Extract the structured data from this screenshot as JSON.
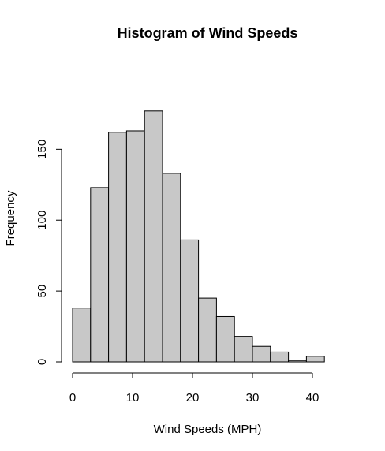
{
  "chart_data": {
    "type": "bar",
    "title": "Histogram of Wind Speeds",
    "xlabel": "Wind Speeds (MPH)",
    "ylabel": "Frequency",
    "bin_edges": [
      0,
      3,
      6,
      9,
      12,
      15,
      18,
      21,
      24,
      27,
      30,
      33,
      36,
      39,
      42
    ],
    "values": [
      38,
      123,
      162,
      163,
      177,
      133,
      86,
      45,
      32,
      18,
      11,
      7,
      1,
      4
    ],
    "x_ticks": [
      0,
      10,
      20,
      30,
      40
    ],
    "y_ticks": [
      0,
      50,
      100,
      150
    ],
    "xlim": [
      0,
      45
    ],
    "ylim": [
      0,
      177
    ],
    "grid": false
  }
}
